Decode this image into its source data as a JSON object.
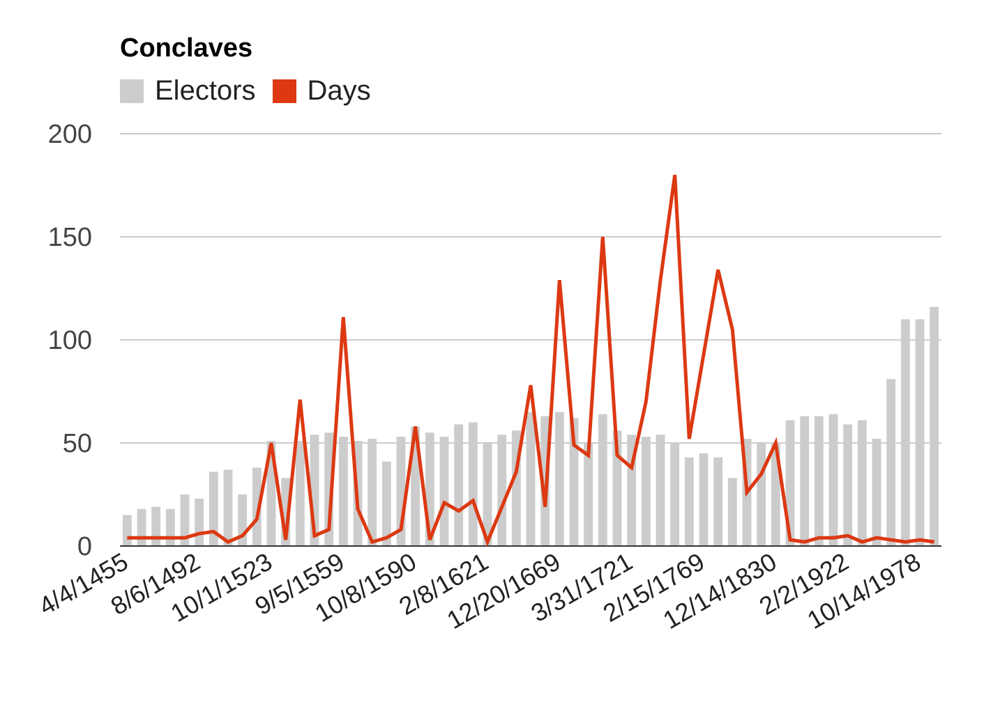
{
  "chart_data": {
    "type": "bar",
    "title": "Conclaves",
    "xlabel": "",
    "ylabel": "",
    "ylim": [
      0,
      200
    ],
    "yticks": [
      0,
      50,
      100,
      150,
      200
    ],
    "grid": true,
    "legend_position": "top-left",
    "x_tick_labels": [
      "4/4/1455",
      "8/6/1492",
      "10/1/1523",
      "9/5/1559",
      "10/8/1590",
      "2/8/1621",
      "12/20/1669",
      "3/31/1721",
      "2/15/1769",
      "12/14/1830",
      "2/2/1922",
      "10/14/1978"
    ],
    "x_tick_indices": [
      0,
      5,
      10,
      15,
      20,
      25,
      30,
      35,
      40,
      45,
      50,
      55
    ],
    "series": [
      {
        "name": "Electors",
        "type": "bar",
        "color": "#cccccc",
        "values": [
          15,
          18,
          19,
          18,
          25,
          23,
          36,
          37,
          25,
          38,
          51,
          33,
          51,
          54,
          55,
          53,
          51,
          52,
          41,
          53,
          58,
          55,
          53,
          59,
          60,
          50,
          54,
          56,
          65,
          63,
          65,
          62,
          50,
          64,
          56,
          54,
          53,
          54,
          50,
          43,
          45,
          43,
          33,
          52,
          50,
          50,
          61,
          63,
          63,
          64,
          59,
          61,
          52,
          81,
          110,
          110,
          116
        ]
      },
      {
        "name": "Days",
        "type": "line",
        "color": "#dc3912",
        "values": [
          4,
          4,
          4,
          4,
          4,
          6,
          7,
          2,
          5,
          13,
          50,
          3,
          71,
          5,
          8,
          111,
          18,
          2,
          4,
          8,
          58,
          3,
          21,
          17,
          22,
          2,
          19,
          36,
          78,
          19,
          129,
          49,
          44,
          150,
          44,
          38,
          70,
          129,
          180,
          52,
          93,
          134,
          105,
          26,
          35,
          50,
          3,
          2,
          4,
          4,
          5,
          2,
          4,
          3,
          2,
          3,
          2
        ]
      }
    ]
  }
}
